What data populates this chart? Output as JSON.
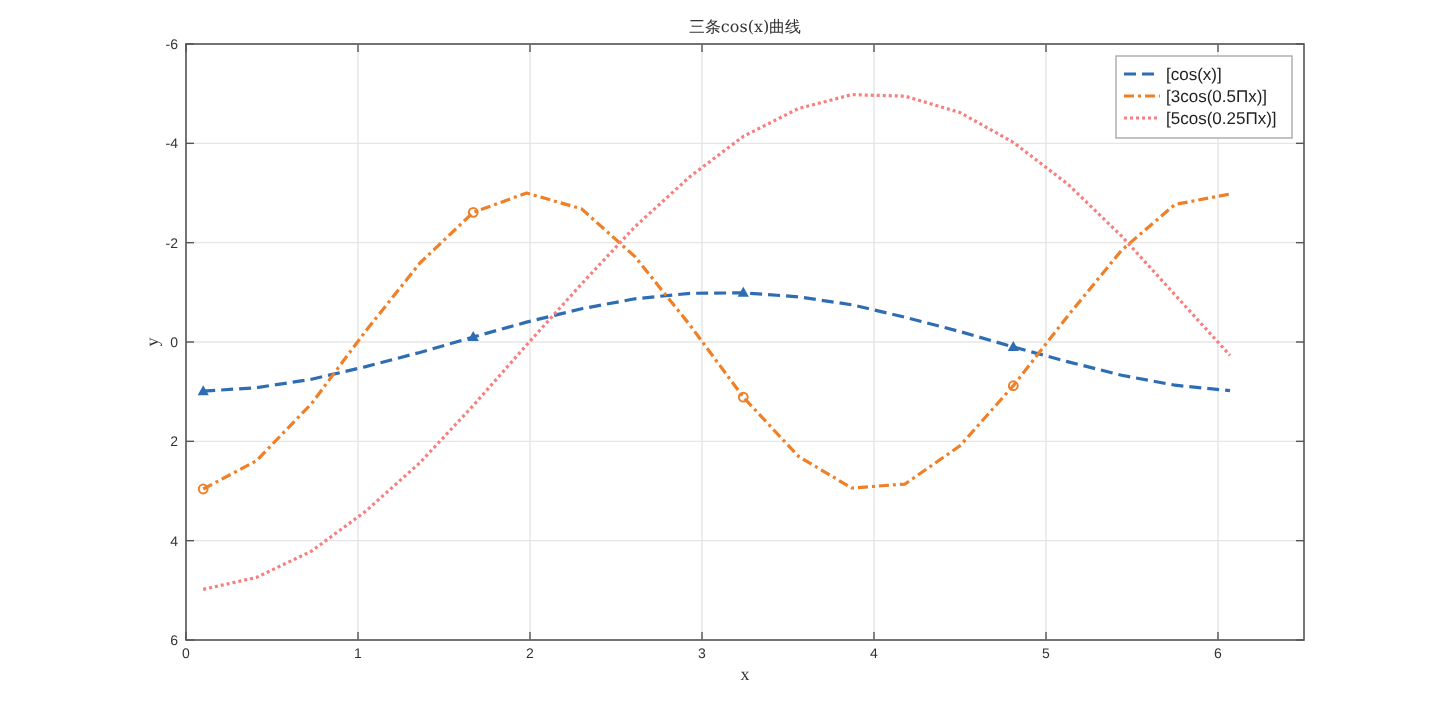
{
  "chart_data": {
    "type": "line",
    "title": "三条cos(x)曲线",
    "xlabel": "x",
    "ylabel": "y",
    "x": [
      0.1,
      0.41,
      0.73,
      1.04,
      1.36,
      1.67,
      1.98,
      2.3,
      2.61,
      2.93,
      3.24,
      3.56,
      3.87,
      4.18,
      4.5,
      4.81,
      5.13,
      5.44,
      5.75,
      6.07
    ],
    "series": [
      {
        "name": "[cos(x)]",
        "color": "#2f6db3",
        "line_style": "dashed",
        "marker": "none",
        "values": [
          0.99,
          0.92,
          0.75,
          0.5,
          0.21,
          -0.1,
          -0.4,
          -0.67,
          -0.87,
          -0.98,
          -0.99,
          -0.91,
          -0.75,
          -0.5,
          -0.21,
          0.1,
          0.4,
          0.67,
          0.87,
          0.98
        ]
      },
      {
        "name": "[3cos(0.5Πx)]",
        "color": "#f07f26",
        "line_style": "dashdot",
        "marker": "none",
        "values": [
          2.96,
          2.39,
          1.24,
          -0.2,
          -1.59,
          -2.61,
          -3.0,
          -2.68,
          -1.72,
          -0.34,
          1.11,
          2.3,
          2.94,
          2.86,
          2.09,
          0.88,
          -0.54,
          -1.85,
          -2.77,
          -2.98
        ]
      },
      {
        "name": "[5cos(0.25Πx)]",
        "color": "#f77f7f",
        "line_style": "dotted",
        "marker": "none",
        "values": [
          4.98,
          4.74,
          4.21,
          3.42,
          2.43,
          1.28,
          0.06,
          -1.17,
          -2.32,
          -3.33,
          -4.14,
          -4.7,
          -4.98,
          -4.95,
          -4.62,
          -4.02,
          -3.17,
          -2.13,
          -0.95,
          0.27
        ]
      },
      {
        "type": "scatter",
        "color": "#2f6db3",
        "marker": "triangle",
        "x": [
          0.1,
          1.67,
          3.24,
          4.81
        ],
        "values": [
          0.99,
          -0.1,
          -0.99,
          0.1
        ]
      },
      {
        "type": "scatter",
        "color": "#f07f26",
        "marker": "circle",
        "x": [
          0.1,
          1.67,
          3.24,
          4.81
        ],
        "values": [
          2.96,
          -2.61,
          1.11,
          0.88
        ]
      }
    ],
    "xlim": [
      0,
      6.5
    ],
    "xticks": [
      0,
      1,
      2,
      3,
      4,
      5,
      6
    ],
    "ylim": [
      6,
      -6
    ],
    "yticks": [
      -6,
      -4,
      -2,
      0,
      2,
      4,
      6
    ],
    "grid": true,
    "legend": "top right"
  }
}
